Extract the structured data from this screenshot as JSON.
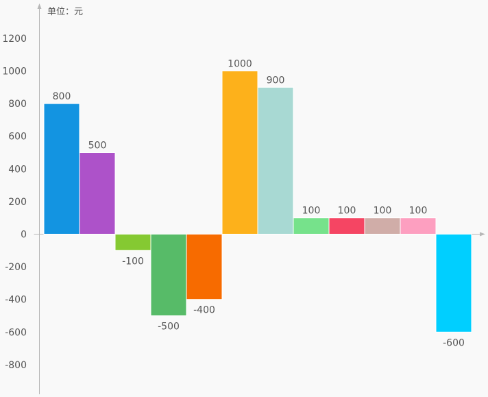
{
  "chart_data": {
    "type": "bar",
    "ylabel": "单位：元",
    "ylim": [
      -950,
      1350
    ],
    "yticks": [
      1200,
      1000,
      800,
      600,
      400,
      200,
      0,
      -200,
      -400,
      -600,
      -800
    ],
    "values": [
      800,
      500,
      -100,
      -500,
      -400,
      1000,
      900,
      100,
      100,
      100,
      100,
      -600
    ],
    "colors": [
      "#1394e1",
      "#ad52c9",
      "#85c932",
      "#57bb68",
      "#f76b00",
      "#fdb11b",
      "#a8d9d3",
      "#76e28b",
      "#f54563",
      "#d0ada8",
      "#fd9fc0",
      "#00cfff"
    ],
    "grid": false,
    "legend": "none"
  }
}
